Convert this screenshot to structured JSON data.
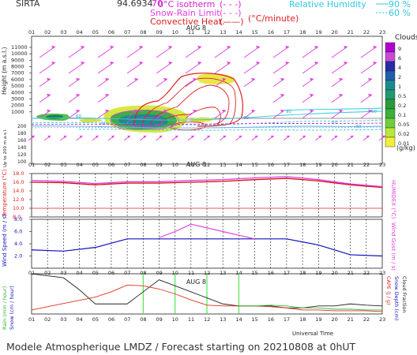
{
  "header": {
    "station": "SIRTA",
    "coords": "94.6934",
    "lat_prefix": "70",
    "legend_isotherm": "0°C isotherm",
    "legend_snow_rain": "Snow-Rain Limit",
    "legend_convective": "Convective Heat.",
    "legend_convective_unit": "(°C/minute)",
    "legend_rh_label": "Relative Humidity",
    "legend_rh_90": "90 %",
    "legend_rh_60": "60 %",
    "sym_dashed": "(- - -)",
    "sym_dashed2": "(- - -)",
    "sym_line": "(——)"
  },
  "hours": [
    "01",
    "02",
    "03",
    "04",
    "05",
    "06",
    "07",
    "08",
    "09",
    "10",
    "11",
    "12",
    "13",
    "14",
    "15",
    "16",
    "17",
    "18",
    "19",
    "20",
    "21",
    "22",
    "23"
  ],
  "date_label": "AUG  8",
  "clouds": {
    "title": "Clouds",
    "levels": [
      "9",
      "6",
      "4",
      "2",
      "1",
      "0.5",
      "0.2",
      "0.1",
      "0.05",
      "0.02",
      "0.01"
    ],
    "colors": [
      "#b000d0",
      "#c64bd6",
      "#2a2aa8",
      "#1d5fa8",
      "#1a8a8f",
      "#1e9a6e",
      "#2a9a3a",
      "#3ab03a",
      "#6fcf3a",
      "#b8e83a",
      "#f0f03a"
    ],
    "unit": "(g/kg)"
  },
  "panel1": {
    "ylabel": "Height  (m a.s.l.)",
    "ylabel2": "Up to 200 m a.s.l.",
    "yticks": [
      "11000",
      "10000",
      "9000",
      "8000",
      "7000",
      "6000",
      "5000",
      "4000",
      "3000",
      "2000",
      "1000"
    ],
    "yticks_low": [
      "200",
      "180",
      "160",
      "140",
      "120",
      "100"
    ],
    "contour_labels": [
      "60",
      "60",
      "60",
      "90",
      "60",
      "90",
      "60"
    ]
  },
  "panel2": {
    "ylabel_left": "Temperature (°C)",
    "ylabel_right": "HUMIDEX (°C)",
    "yticks": [
      "18.0",
      "16.0",
      "14.0",
      "12.0",
      "10.0",
      "8.0"
    ]
  },
  "panel3": {
    "ylabel_left": "Wind Speed (m / s)",
    "ylabel_right": "Wind Gust (m / s)",
    "yticks": [
      "8.0",
      "6.0",
      "4.0",
      "2.0"
    ]
  },
  "panel4": {
    "ylabel_left1": "Rain (mm / hour)",
    "ylabel_left2": "Snow (cm / hour)",
    "ylabel_right1": "CAPE (J / g)",
    "ylabel_right2": "Snow Depth (cm)",
    "ylabel_right3": "Cloud Fraction",
    "xlabel": "Universal Time"
  },
  "footer": "Modele Atmospherique LMDZ / Forecast starting on 20210808 at 0hUT",
  "chart_data": [
    {
      "type": "line",
      "title": "",
      "series": [
        {
          "name": "Temperature",
          "color": "#d01010",
          "x": [
            1,
            3,
            5,
            7,
            9,
            11,
            13,
            15,
            17,
            19,
            21,
            23
          ],
          "values": [
            16.0,
            15.9,
            15.4,
            15.8,
            15.8,
            16.0,
            16.2,
            16.6,
            16.9,
            16.3,
            15.4,
            14.8
          ]
        },
        {
          "name": "HUMIDEX",
          "color": "#e040e0",
          "x": [
            1,
            3,
            5,
            7,
            9,
            11,
            13,
            15,
            17,
            19,
            21,
            23
          ],
          "values": [
            16.4,
            16.2,
            15.7,
            16.1,
            16.1,
            16.4,
            16.6,
            17.0,
            17.3,
            16.6,
            15.6,
            15.0
          ]
        }
      ],
      "ylim": [
        8.0,
        18.0
      ]
    },
    {
      "type": "line",
      "series": [
        {
          "name": "Wind Speed",
          "color": "#1010c0",
          "x": [
            1,
            3,
            5,
            7,
            9,
            11,
            13,
            15,
            17,
            19,
            21,
            23
          ],
          "values": [
            3.0,
            2.8,
            3.4,
            4.8,
            4.8,
            4.8,
            4.8,
            4.8,
            4.8,
            3.8,
            2.2,
            2.0
          ]
        },
        {
          "name": "Wind Gust",
          "color": "#e040e0",
          "x": [
            9,
            10,
            11,
            12,
            13,
            14,
            15
          ],
          "values": [
            5.0,
            6.0,
            7.2,
            6.6,
            6.0,
            5.4,
            4.8
          ]
        }
      ],
      "ylim": [
        0,
        8.0
      ]
    },
    {
      "type": "line",
      "series": [
        {
          "name": "Cloud Fraction",
          "color": "#222222",
          "x": [
            1,
            2,
            3,
            4,
            5,
            6,
            7,
            8,
            9,
            10,
            11,
            12,
            13,
            14,
            15,
            16,
            17,
            18,
            19,
            20,
            21,
            22,
            23
          ],
          "values": [
            1.0,
            0.95,
            0.9,
            0.6,
            0.25,
            0.25,
            0.25,
            0.55,
            0.85,
            0.7,
            0.55,
            0.4,
            0.25,
            0.2,
            0.2,
            0.2,
            0.15,
            0.15,
            0.2,
            0.2,
            0.25,
            0.22,
            0.2
          ]
        },
        {
          "name": "CAPE",
          "color": "#e03020",
          "x": [
            1,
            2,
            3,
            4,
            5,
            6,
            7,
            8,
            9,
            10,
            11,
            12,
            13,
            14,
            15,
            16,
            17,
            18,
            19,
            20,
            21,
            22,
            23
          ],
          "values": [
            0.1,
            0.18,
            0.26,
            0.34,
            0.42,
            0.55,
            0.72,
            0.7,
            0.62,
            0.5,
            0.35,
            0.22,
            0.2,
            0.2,
            0.2,
            0.18,
            0.15,
            0.1,
            0.1,
            0.08,
            0.08,
            0.08,
            0.06
          ]
        },
        {
          "name": "Rain",
          "color": "#30c030",
          "x": [
            14,
            15,
            16,
            17,
            18,
            19,
            20,
            21,
            22,
            23
          ],
          "values": [
            0.2,
            0.2,
            0.22,
            0.2,
            0.15,
            0.15,
            0.12,
            0.12,
            0.1,
            0.1
          ]
        }
      ],
      "rain_bars_x": [
        8,
        10,
        12,
        14
      ]
    }
  ]
}
